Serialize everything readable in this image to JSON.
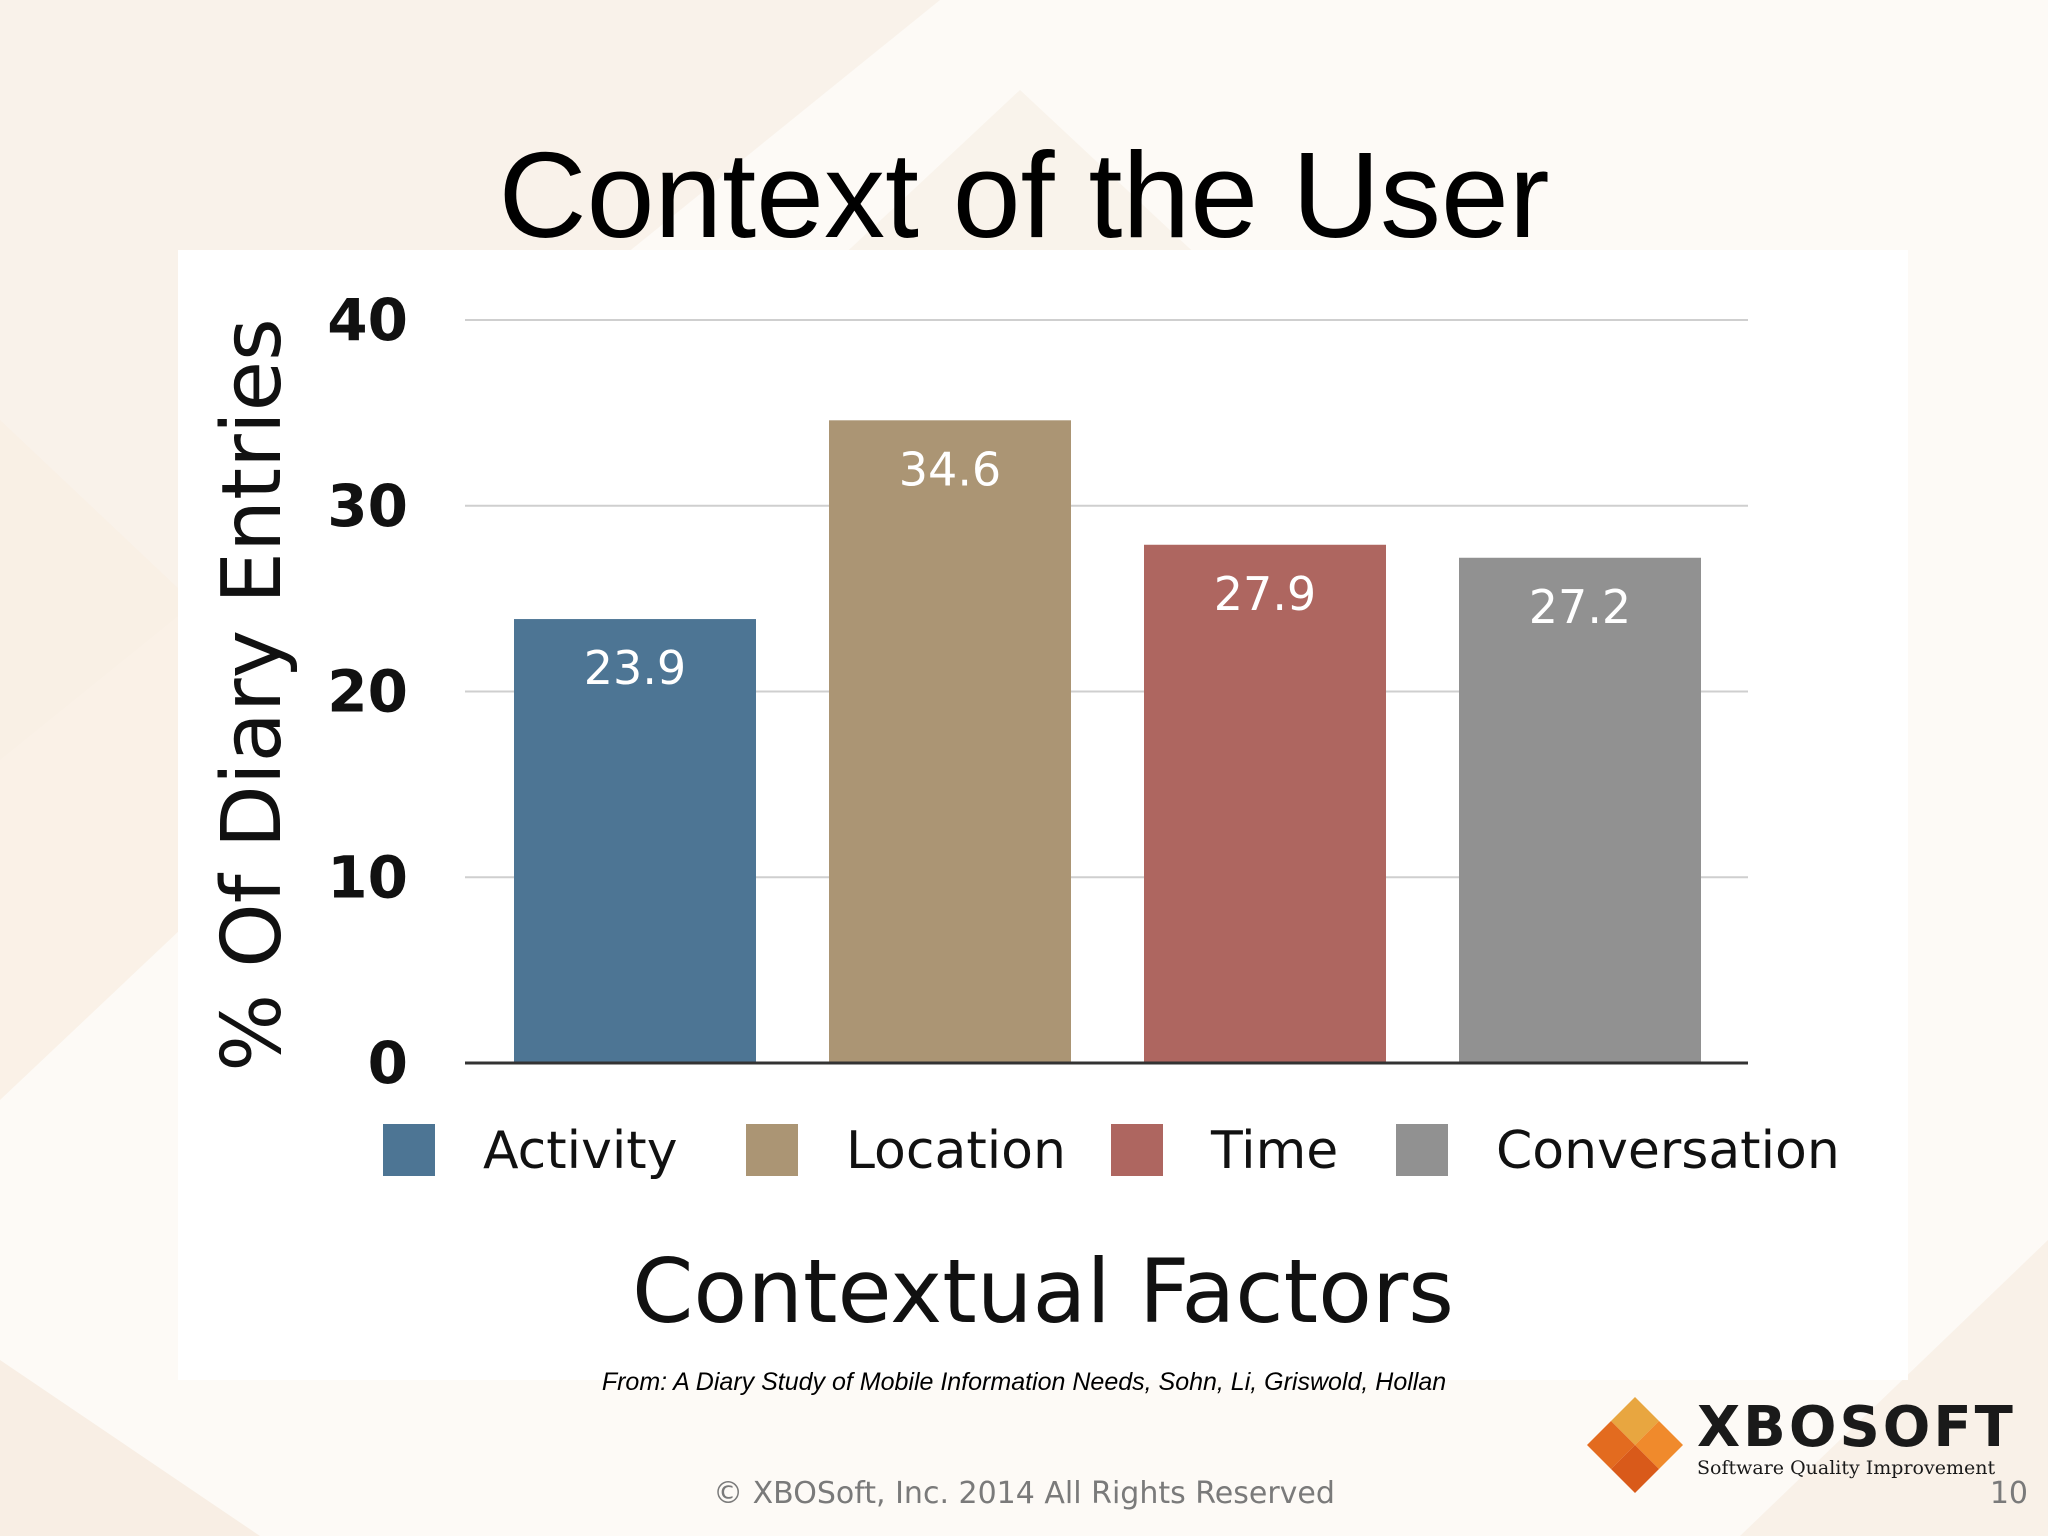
{
  "slide": {
    "title": "Context of the User",
    "source": "From: A Diary Study of Mobile Information Needs, Sohn, Li, Griswold, Hollan",
    "footer": "© XBOSoft, Inc. 2014 All Rights Reserved",
    "page_number": "10"
  },
  "brand": {
    "name": "XBOSOFT",
    "tagline": "Software Quality Improvement",
    "logo_colors": [
      "#e8a640",
      "#e36b1f",
      "#f08a2c",
      "#d95a1a"
    ]
  },
  "chart_data": {
    "type": "bar",
    "title": "",
    "xlabel": "Contextual Factors",
    "ylabel": "% Of Diary Entries",
    "categories": [
      "Activity",
      "Location",
      "Time",
      "Conversation"
    ],
    "values": [
      23.9,
      34.6,
      27.9,
      27.2
    ],
    "value_labels": [
      "23.9",
      "34.6",
      "27.9",
      "27.2"
    ],
    "colors": [
      "#4d7594",
      "#ab9574",
      "#ae6660",
      "#919191"
    ],
    "ylim": [
      0,
      40
    ],
    "yticks": [
      "0",
      "10",
      "20",
      "30",
      "40"
    ],
    "grid": true,
    "legend_position": "bottom"
  }
}
